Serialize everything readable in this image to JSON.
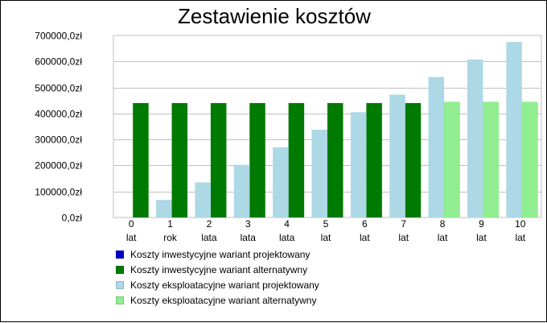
{
  "chart_data": {
    "type": "bar",
    "title": "Zestawienie kosztów",
    "xlabel": "",
    "ylabel": "",
    "ylim": [
      0,
      700000
    ],
    "yticks": [
      0,
      100000,
      200000,
      300000,
      400000,
      500000,
      600000,
      700000
    ],
    "ytick_labels": [
      "0,0zł",
      "100000,0zł",
      "200000,0zł",
      "300000,0zł",
      "400000,0zł",
      "500000,0zł",
      "600000,0zł",
      "700000,0zł"
    ],
    "grid": true,
    "legend_position": "bottom",
    "categories": [
      {
        "num": "0",
        "unit": "lat"
      },
      {
        "num": "1",
        "unit": "rok"
      },
      {
        "num": "2",
        "unit": "lata"
      },
      {
        "num": "3",
        "unit": "lata"
      },
      {
        "num": "4",
        "unit": "lata"
      },
      {
        "num": "5",
        "unit": "lat"
      },
      {
        "num": "6",
        "unit": "lat"
      },
      {
        "num": "7",
        "unit": "lat"
      },
      {
        "num": "8",
        "unit": "lat"
      },
      {
        "num": "9",
        "unit": "lat"
      },
      {
        "num": "10",
        "unit": "lat"
      }
    ],
    "series": [
      {
        "name": "Koszty inwestycyjne wariant projektowany",
        "color": "#0000cc",
        "values": [
          0,
          0,
          0,
          0,
          0,
          0,
          0,
          0,
          0,
          0,
          0
        ]
      },
      {
        "name": "Koszty inwestycyjne wariant alternatywny",
        "color": "#007a00",
        "values": [
          440000,
          440000,
          440000,
          440000,
          440000,
          440000,
          440000,
          440000,
          440000,
          440000,
          440000
        ]
      },
      {
        "name": "Koszty eksploatacyjne wariant projektowany",
        "color": "#add8e6",
        "values": [
          0,
          67500,
          135000,
          202500,
          270000,
          337500,
          405000,
          472500,
          540000,
          607500,
          675000
        ]
      },
      {
        "name": "Koszty eksploatacyjne wariant alternatywny",
        "color": "#90ee90",
        "values": [
          0,
          0,
          0,
          0,
          0,
          0,
          0,
          0,
          445000,
          445000,
          445000
        ]
      }
    ]
  }
}
